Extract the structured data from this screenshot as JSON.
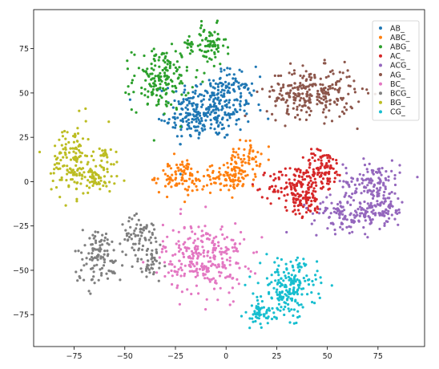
{
  "chart_data": {
    "type": "scatter",
    "title": "",
    "xlabel": "",
    "ylabel": "",
    "xlim": [
      -95,
      98
    ],
    "ylim": [
      -93,
      97
    ],
    "xticks": [
      -75,
      -50,
      -25,
      0,
      25,
      50,
      75
    ],
    "yticks": [
      -75,
      -50,
      -25,
      0,
      25,
      50,
      75
    ],
    "xtick_labels": [
      "−75",
      "−50",
      "−25",
      "0",
      "25",
      "50",
      "75"
    ],
    "ytick_labels": [
      "−75",
      "−50",
      "−25",
      "0",
      "25",
      "50",
      "75"
    ],
    "grid": false,
    "legend_position": "top-right",
    "series": [
      {
        "name": "AB_",
        "color": "#1f77b4",
        "clusters": [
          {
            "cx": -7,
            "cy": 42,
            "sx": 10,
            "sy": 9,
            "n": 260
          },
          {
            "cx": -18,
            "cy": 35,
            "sx": 6,
            "sy": 6,
            "n": 60
          },
          {
            "cx": 5,
            "cy": 55,
            "sx": 5,
            "sy": 5,
            "n": 40
          }
        ]
      },
      {
        "name": "ABC_",
        "color": "#ff7f0e",
        "clusters": [
          {
            "cx": -25,
            "cy": 3,
            "sx": 5,
            "sy": 5,
            "n": 70
          },
          {
            "cx": -15,
            "cy": 0,
            "sx": 4,
            "sy": 3,
            "n": 30
          },
          {
            "cx": 3,
            "cy": 2,
            "sx": 6,
            "sy": 4,
            "n": 80
          },
          {
            "cx": 9,
            "cy": 13,
            "sx": 4,
            "sy": 5,
            "n": 60
          }
        ]
      },
      {
        "name": "ABG_",
        "color": "#2ca02c",
        "clusters": [
          {
            "cx": -32,
            "cy": 58,
            "sx": 7,
            "sy": 9,
            "n": 170
          },
          {
            "cx": -8,
            "cy": 76,
            "sx": 4,
            "sy": 6,
            "n": 70
          },
          {
            "cx": -19,
            "cy": 78,
            "sx": 2,
            "sy": 1.5,
            "n": 12
          }
        ]
      },
      {
        "name": "AC_",
        "color": "#d62728",
        "clusters": [
          {
            "cx": 35,
            "cy": -3,
            "sx": 7,
            "sy": 6,
            "n": 150
          },
          {
            "cx": 48,
            "cy": 8,
            "sx": 5,
            "sy": 5,
            "n": 90
          },
          {
            "cx": 40,
            "cy": -14,
            "sx": 4,
            "sy": 3,
            "n": 40
          }
        ]
      },
      {
        "name": "ACG_",
        "color": "#9467bd",
        "clusters": [
          {
            "cx": 72,
            "cy": 0,
            "sx": 7,
            "sy": 6,
            "n": 120
          },
          {
            "cx": 62,
            "cy": -18,
            "sx": 10,
            "sy": 5,
            "n": 140
          },
          {
            "cx": 78,
            "cy": -15,
            "sx": 5,
            "sy": 5,
            "n": 60
          }
        ]
      },
      {
        "name": "AG_",
        "color": "#8c564b",
        "clusters": [
          {
            "cx": 42,
            "cy": 50,
            "sx": 11,
            "sy": 7,
            "n": 260
          }
        ]
      },
      {
        "name": "BC_",
        "color": "#e377c2",
        "clusters": [
          {
            "cx": -11,
            "cy": -43,
            "sx": 10,
            "sy": 10,
            "n": 280
          }
        ]
      },
      {
        "name": "BCG_",
        "color": "#7f7f7f",
        "clusters": [
          {
            "cx": -63,
            "cy": -42,
            "sx": 6,
            "sy": 8,
            "n": 110
          },
          {
            "cx": -42,
            "cy": -30,
            "sx": 5,
            "sy": 5,
            "n": 70
          },
          {
            "cx": -37,
            "cy": -46,
            "sx": 4,
            "sy": 5,
            "n": 40
          }
        ]
      },
      {
        "name": "BG_",
        "color": "#bcbd22",
        "clusters": [
          {
            "cx": -76,
            "cy": 12,
            "sx": 5,
            "sy": 10,
            "n": 140
          },
          {
            "cx": -64,
            "cy": 1,
            "sx": 6,
            "sy": 4,
            "n": 60
          },
          {
            "cx": -59,
            "cy": 15,
            "sx": 2,
            "sy": 3,
            "n": 20
          }
        ]
      },
      {
        "name": "CG_",
        "color": "#17becf",
        "clusters": [
          {
            "cx": 31,
            "cy": -60,
            "sx": 7,
            "sy": 8,
            "n": 200
          },
          {
            "cx": 16,
            "cy": -75,
            "sx": 4,
            "sy": 4,
            "n": 50
          }
        ]
      }
    ]
  }
}
